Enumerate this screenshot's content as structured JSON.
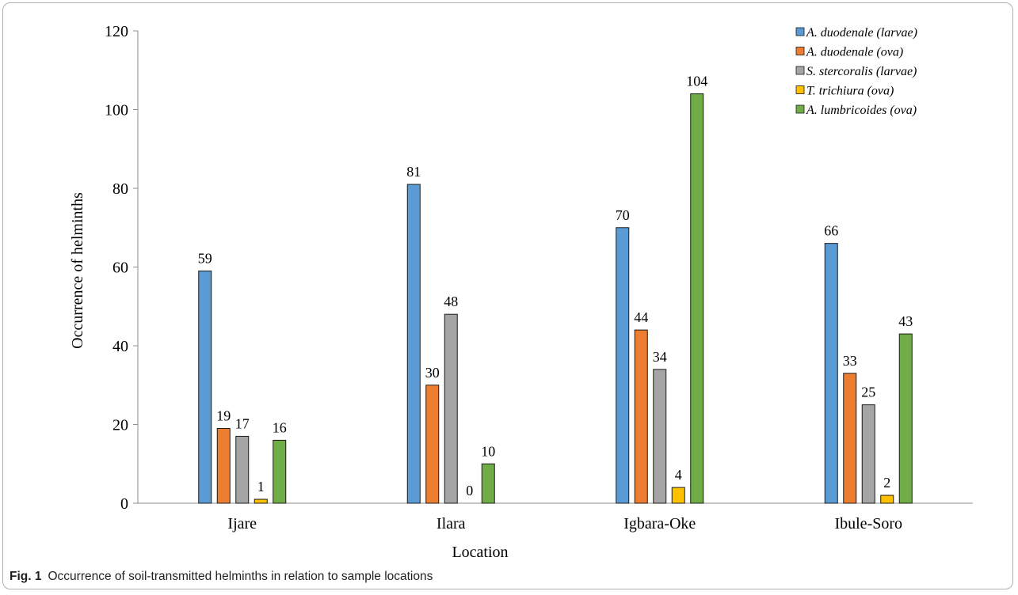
{
  "figure": {
    "caption_label": "Fig. 1",
    "caption_text": "Occurrence of soil-transmitted helminths in relation to sample locations"
  },
  "chart_data": {
    "type": "bar",
    "title": "",
    "xlabel": "Location",
    "ylabel": "Occurrence of helminths",
    "ylim": [
      0,
      120
    ],
    "yticks": [
      0,
      20,
      40,
      60,
      80,
      100,
      120
    ],
    "grid": false,
    "legend_position": "top-right",
    "categories": [
      "Ijare",
      "Ilara",
      "Igbara-Oke",
      "Ibule-Soro"
    ],
    "series": [
      {
        "name": "A. duodenale (larvae)",
        "color": "#5b9bd5",
        "values": [
          59,
          81,
          70,
          66
        ]
      },
      {
        "name": "A. duodenale (ova)",
        "color": "#ed7d31",
        "values": [
          19,
          30,
          44,
          33
        ]
      },
      {
        "name": "S. stercoralis (larvae)",
        "color": "#a5a5a5",
        "values": [
          17,
          48,
          34,
          25
        ]
      },
      {
        "name": "T. trichiura (ova)",
        "color": "#ffc000",
        "values": [
          1,
          0,
          4,
          2
        ]
      },
      {
        "name": "A. lumbricoides (ova)",
        "color": "#70ad47",
        "values": [
          16,
          10,
          104,
          43
        ]
      }
    ]
  }
}
